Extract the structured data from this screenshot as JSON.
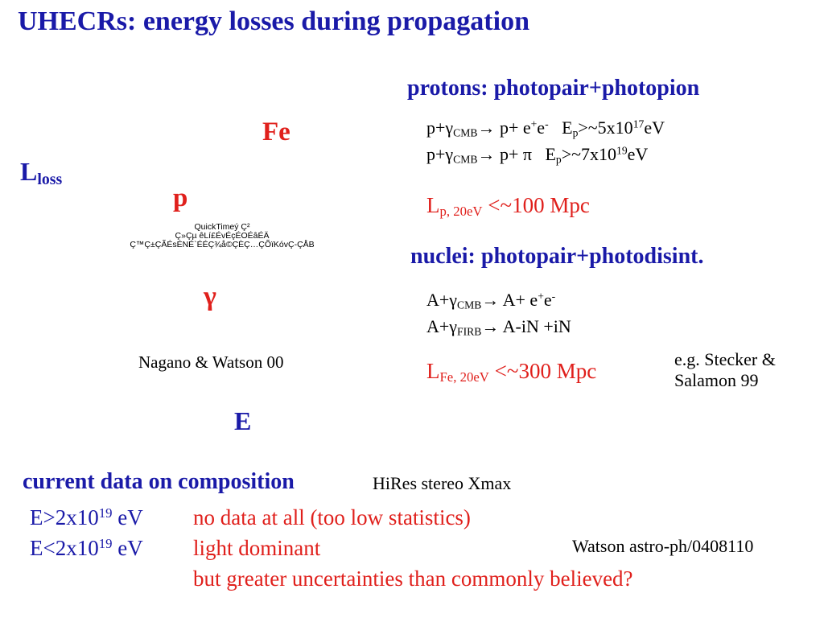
{
  "title": "UHECRs: energy losses during propagation",
  "plot_labels": {
    "lloss": "L",
    "lloss_sub": "loss",
    "fe": "Fe",
    "p": "p",
    "gamma": "γ",
    "e": "E"
  },
  "placeholder_lines": [
    "QuickTimeý Ç²",
    "Ç»Çµ êLí£ÉvÉçÉOÉâÉÄ",
    "Ç™Ç±ÇÃÉsÉNÉ`ÉÉÇ¾å©ÇÈÇ…ÇÕïKóvÇ-ÇÅB"
  ],
  "figure_credit": "Nagano & Watson 00",
  "protons": {
    "heading": "protons: photopair+photopion",
    "reaction1": {
      "lhs": "p+γ",
      "lhs_sub": "CMB",
      "arrow": "→ p+ e",
      "e_sup1": "+",
      "e2": "e",
      "e_sup2": "-",
      "threshold": "E",
      "threshold_sub": "p",
      "threshold_rel": ">~5x10",
      "threshold_exp": "17",
      "threshold_unit": "eV"
    },
    "reaction2": {
      "lhs": "p+γ",
      "lhs_sub": "CMB",
      "arrow": "→ p+ π",
      "threshold": "E",
      "threshold_sub": "p",
      "threshold_rel": ">~7x10",
      "threshold_exp": "19",
      "threshold_unit": "eV"
    },
    "loss_length": {
      "symbol": "L",
      "sub": "p, 20eV",
      "value": " <~100 Mpc"
    }
  },
  "nuclei": {
    "heading": "nuclei: photopair+photodisint.",
    "reaction1": {
      "lhs": "A+γ",
      "lhs_sub": "CMB",
      "arrow": "→ A+ e",
      "e_sup1": "+",
      "e2": "e",
      "e_sup2": "-"
    },
    "reaction2": {
      "lhs": "A+γ",
      "lhs_sub": "FIRB",
      "arrow": "→ A-iN +iN"
    },
    "loss_length": {
      "symbol": "L",
      "sub": "Fe, 20eV",
      "value": " <~300 Mpc"
    },
    "reference": "e.g. Stecker & Salamon 99"
  },
  "composition": {
    "heading": "current data on composition",
    "hires": "HiRes stereo Xmax",
    "high": {
      "base": "E>2x10",
      "exp": "19",
      "unit": " eV",
      "status": "no data at all (too low statistics)"
    },
    "low": {
      "base": "E<2x10",
      "exp": "19",
      "unit": " eV",
      "status": "light dominant"
    },
    "note": "but greater uncertainties than commonly believed?",
    "reference": "Watson astro-ph/0408110"
  },
  "colors": {
    "blue": "#1a1aa8",
    "red": "#e0201c",
    "black": "#000000"
  }
}
